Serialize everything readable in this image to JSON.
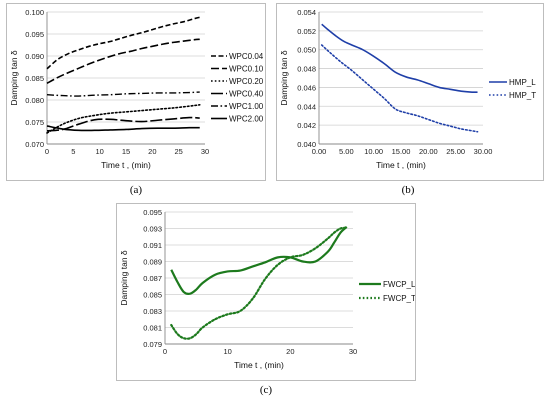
{
  "captions": [
    "(a)",
    "(b)",
    "(c)"
  ],
  "chart_data": [
    {
      "type": "line",
      "ylabel": "Damping  tan δ",
      "xlabel": "Time  t , (min)",
      "xlim": [
        0,
        30
      ],
      "ylim": [
        0.07,
        0.1
      ],
      "x_ticks": [
        "0",
        "5",
        "10",
        "15",
        "20",
        "25",
        "30"
      ],
      "y_ticks": [
        "0.070",
        "0.075",
        "0.080",
        "0.085",
        "0.090",
        "0.095",
        "0.100"
      ],
      "grid": true,
      "legend": "right",
      "series": [
        {
          "name": "WPC0.04",
          "color": "#000000",
          "dash": "dash-short",
          "width": 1.6,
          "x": [
            0,
            2,
            4,
            6,
            8,
            10,
            12,
            14,
            16,
            18,
            20,
            22,
            24,
            26,
            28,
            29
          ],
          "y": [
            0.0871,
            0.0892,
            0.0905,
            0.0914,
            0.0922,
            0.0928,
            0.0933,
            0.094,
            0.0947,
            0.0953,
            0.096,
            0.0967,
            0.0973,
            0.0978,
            0.0985,
            0.0988
          ]
        },
        {
          "name": "WPC0.10",
          "color": "#000000",
          "dash": "dash-long",
          "width": 1.6,
          "x": [
            0,
            2,
            4,
            6,
            8,
            10,
            12,
            14,
            16,
            18,
            20,
            22,
            24,
            26,
            28,
            29
          ],
          "y": [
            0.0838,
            0.0851,
            0.0862,
            0.0872,
            0.0882,
            0.0891,
            0.0899,
            0.0906,
            0.0911,
            0.0917,
            0.0922,
            0.0927,
            0.0931,
            0.0934,
            0.0937,
            0.0938
          ]
        },
        {
          "name": "WPC0.20",
          "color": "#000000",
          "dash": "dot",
          "width": 1.6,
          "x": [
            0,
            3,
            6,
            9,
            12,
            15,
            18,
            21,
            24,
            27,
            29
          ],
          "y": [
            0.0725,
            0.0745,
            0.0758,
            0.0765,
            0.077,
            0.0773,
            0.0776,
            0.0779,
            0.0782,
            0.0786,
            0.0789
          ]
        },
        {
          "name": "WPC0.40",
          "color": "#000000",
          "dash": "dash-very-long",
          "width": 1.6,
          "x": [
            0,
            3,
            6,
            9,
            12,
            15,
            18,
            21,
            24,
            27,
            29
          ],
          "y": [
            0.073,
            0.0733,
            0.0745,
            0.0755,
            0.0756,
            0.0753,
            0.0751,
            0.0754,
            0.0757,
            0.076,
            0.0759
          ]
        },
        {
          "name": "WPC1.00",
          "color": "#000000",
          "dash": "dash-dot",
          "width": 1.4,
          "x": [
            0,
            3,
            6,
            9,
            12,
            15,
            18,
            21,
            24,
            27,
            29
          ],
          "y": [
            0.0812,
            0.081,
            0.0809,
            0.0811,
            0.0812,
            0.0814,
            0.0815,
            0.0816,
            0.0816,
            0.0817,
            0.0818
          ]
        },
        {
          "name": "WPC2.00",
          "color": "#000000",
          "dash": "solid",
          "width": 1.6,
          "x": [
            0,
            3,
            6,
            9,
            12,
            15,
            18,
            21,
            24,
            27,
            29
          ],
          "y": [
            0.0741,
            0.0734,
            0.0731,
            0.0731,
            0.0732,
            0.0733,
            0.0735,
            0.0736,
            0.0736,
            0.0737,
            0.0737
          ]
        }
      ]
    },
    {
      "type": "line",
      "ylabel": "Damping  tan δ",
      "xlabel": "Time  t , (min)",
      "xlim": [
        0,
        30
      ],
      "ylim": [
        0.04,
        0.054
      ],
      "x_ticks": [
        "0.00",
        "5.00",
        "10.00",
        "15.00",
        "20.00",
        "25.00",
        "30.00"
      ],
      "y_ticks": [
        "0.040",
        "0.042",
        "0.044",
        "0.046",
        "0.048",
        "0.050",
        "0.052",
        "0.054"
      ],
      "grid": true,
      "legend": "right",
      "series": [
        {
          "name": "HMP_L",
          "color": "#1f3fa8",
          "dash": "solid",
          "width": 1.6,
          "x": [
            0.5,
            1.5,
            3,
            4.5,
            6,
            8,
            10,
            12,
            14,
            16,
            18,
            20,
            22,
            24,
            26,
            28,
            29
          ],
          "y": [
            0.0527,
            0.0522,
            0.0515,
            0.0509,
            0.0505,
            0.05,
            0.0493,
            0.0485,
            0.0476,
            0.0471,
            0.0468,
            0.0464,
            0.046,
            0.0458,
            0.0456,
            0.0455,
            0.0455
          ]
        },
        {
          "name": "HMP_T",
          "color": "#1f3fa8",
          "dash": "dot",
          "width": 1.6,
          "x": [
            0.5,
            2,
            4,
            6,
            8,
            10,
            12,
            14,
            16,
            18,
            20,
            22,
            24,
            26,
            28,
            29
          ],
          "y": [
            0.0505,
            0.0497,
            0.0487,
            0.0478,
            0.0468,
            0.0458,
            0.0448,
            0.0437,
            0.0433,
            0.043,
            0.0426,
            0.0422,
            0.0419,
            0.0416,
            0.0414,
            0.0413
          ]
        }
      ]
    },
    {
      "type": "line",
      "ylabel": "Damping  tan δ",
      "xlabel": "Time  t , (min)",
      "xlim": [
        0,
        30
      ],
      "ylim": [
        0.079,
        0.095
      ],
      "x_ticks": [
        "0",
        "10",
        "20",
        "30"
      ],
      "y_ticks": [
        "0.079",
        "0.081",
        "0.083",
        "0.085",
        "0.087",
        "0.089",
        "0.091",
        "0.093",
        "0.095"
      ],
      "grid": true,
      "legend": "right",
      "series": [
        {
          "name": "FWCP_L",
          "color": "#1d7a1d",
          "dash": "solid",
          "width": 2.2,
          "x": [
            1,
            2,
            3,
            4,
            5,
            6,
            8,
            10,
            12,
            14,
            16,
            18,
            20,
            22,
            24,
            26,
            27,
            28,
            29
          ],
          "y": [
            0.088,
            0.0865,
            0.0853,
            0.0851,
            0.0856,
            0.0864,
            0.0874,
            0.0878,
            0.0879,
            0.0884,
            0.0889,
            0.0895,
            0.0895,
            0.089,
            0.089,
            0.0902,
            0.0913,
            0.0925,
            0.0932
          ]
        },
        {
          "name": "FWCP_T",
          "color": "#1d7a1d",
          "dash": "dot",
          "width": 2.2,
          "x": [
            1,
            2,
            3,
            4,
            5,
            6,
            8,
            10,
            12,
            14,
            16,
            18,
            20,
            22,
            24,
            26,
            27,
            28,
            29
          ],
          "y": [
            0.0813,
            0.0802,
            0.0797,
            0.0797,
            0.0802,
            0.081,
            0.082,
            0.0826,
            0.083,
            0.0845,
            0.0869,
            0.0886,
            0.0895,
            0.0898,
            0.0906,
            0.0918,
            0.0925,
            0.093,
            0.0931
          ]
        }
      ]
    }
  ]
}
